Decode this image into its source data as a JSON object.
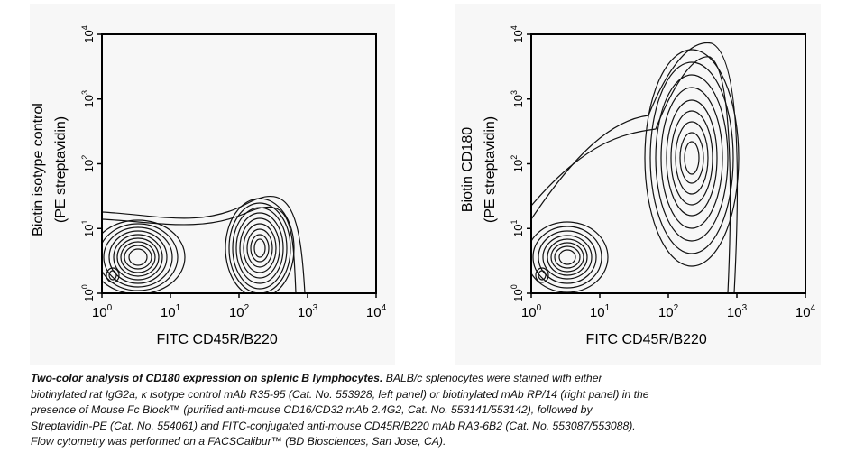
{
  "chart_data": [
    {
      "type": "contour",
      "panel": "left",
      "xlabel": "FITC CD45R/B220",
      "ylabel_line1": "Biotin isotype control",
      "ylabel_line2": "(PE streptavidin)",
      "x_scale": "log",
      "y_scale": "log",
      "xlim": [
        1,
        10000
      ],
      "ylim": [
        1,
        10000
      ],
      "x_ticks": [
        "10^0",
        "10^1",
        "10^2",
        "10^3",
        "10^4"
      ],
      "y_ticks": [
        "10^0",
        "10^1",
        "10^2",
        "10^3",
        "10^4"
      ],
      "populations": [
        {
          "x": 3.5,
          "y": 5,
          "note": "CD45R/B220 negative"
        },
        {
          "x": 1.5,
          "y": 1.5
        },
        {
          "x": 180,
          "y": 6,
          "note": "CD45R/B220 positive"
        }
      ]
    },
    {
      "type": "contour",
      "panel": "right",
      "xlabel": "FITC CD45R/B220",
      "ylabel_line1": "Biotin CD180",
      "ylabel_line2": "(PE streptavidin)",
      "x_scale": "log",
      "y_scale": "log",
      "xlim": [
        1,
        10000
      ],
      "ylim": [
        1,
        10000
      ],
      "x_ticks": [
        "10^0",
        "10^1",
        "10^2",
        "10^3",
        "10^4"
      ],
      "y_ticks": [
        "10^0",
        "10^1",
        "10^2",
        "10^3",
        "10^4"
      ],
      "populations": [
        {
          "x": 3.5,
          "y": 4,
          "note": "CD45R/B220 negative"
        },
        {
          "x": 1.5,
          "y": 1.5
        },
        {
          "x": 220,
          "y": 90,
          "note": "CD45R/B220 positive CD180 positive"
        }
      ]
    }
  ],
  "tick_text": {
    "base": "10",
    "exps": [
      "0",
      "1",
      "2",
      "3",
      "4"
    ]
  },
  "caption": {
    "title": "Two-color analysis of CD180 expression on splenic B lymphocytes.",
    "lines": [
      " BALB/c splenocytes were stained with either",
      "biotinylated rat IgG2a, κ isotype control mAb R35-95 (Cat. No. 553928, left panel) or biotinylated mAb RP/14 (right panel) in the",
      "presence of Mouse Fc Block™ (purified anti-mouse CD16/CD32 mAb 2.4G2, Cat. No. 553141/553142), followed by",
      "Streptavidin-PE (Cat. No. 554061) and FITC-conjugated anti-mouse CD45R/B220 mAb RA3-6B2 (Cat. No. 553087/553088).",
      "Flow cytometry was performed on a FACSCalibur™ (BD Biosciences, San Jose, CA)."
    ]
  }
}
